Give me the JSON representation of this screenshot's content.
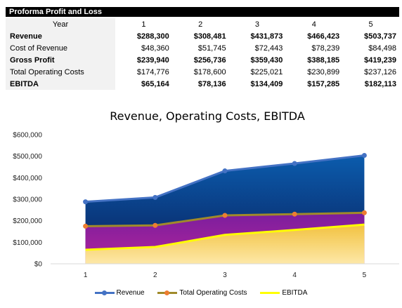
{
  "table": {
    "title": "Proforma Profit and Loss",
    "header_label": "Year",
    "years": [
      "1",
      "2",
      "3",
      "4",
      "5"
    ],
    "rows": [
      {
        "label": "Revenue",
        "bold": true,
        "values": [
          "$288,300",
          "$308,481",
          "$431,873",
          "$466,423",
          "$503,737"
        ]
      },
      {
        "label": "Cost of Revenue",
        "bold": false,
        "values": [
          "$48,360",
          "$51,745",
          "$72,443",
          "$78,239",
          "$84,498"
        ]
      },
      {
        "label": "Gross Profit",
        "bold": true,
        "values": [
          "$239,940",
          "$256,736",
          "$359,430",
          "$388,185",
          "$419,239"
        ]
      },
      {
        "label": "Total Operating Costs",
        "bold": false,
        "values": [
          "$174,776",
          "$178,600",
          "$225,021",
          "$230,899",
          "$237,126"
        ]
      },
      {
        "label": "EBITDA",
        "bold": true,
        "values": [
          "$65,164",
          "$78,136",
          "$134,409",
          "$157,285",
          "$182,113"
        ]
      }
    ]
  },
  "chart_data": {
    "type": "area",
    "title": "Revenue, Operating Costs, EBITDA",
    "xlabel": "",
    "ylabel": "",
    "categories": [
      "1",
      "2",
      "3",
      "4",
      "5"
    ],
    "ylim": [
      0,
      600000
    ],
    "yticks": [
      0,
      100000,
      200000,
      300000,
      400000,
      500000,
      600000
    ],
    "ytick_labels": [
      "$0",
      "$100,000",
      "$200,000",
      "$300,000",
      "$400,000",
      "$500,000",
      "$600,000"
    ],
    "grid": false,
    "legend_position": "bottom",
    "series": [
      {
        "name": "Revenue",
        "values": [
          288300,
          308481,
          431873,
          466423,
          503737
        ],
        "line_color": "#4472c4",
        "fill_top": "#0b5cad",
        "fill_bottom": "#0a1f5c"
      },
      {
        "name": "Total Operating Costs",
        "values": [
          174776,
          178600,
          225021,
          230899,
          237126
        ],
        "line_color": "#a08a2a",
        "marker_color": "#ed7d31",
        "fill_top": "#7b1e9e",
        "fill_bottom": "#b0249a"
      },
      {
        "name": "EBITDA",
        "values": [
          65164,
          78136,
          134409,
          157285,
          182113
        ],
        "line_color": "#ffff00",
        "fill_top": "#f2c240",
        "fill_bottom": "#fde8a8"
      }
    ]
  }
}
